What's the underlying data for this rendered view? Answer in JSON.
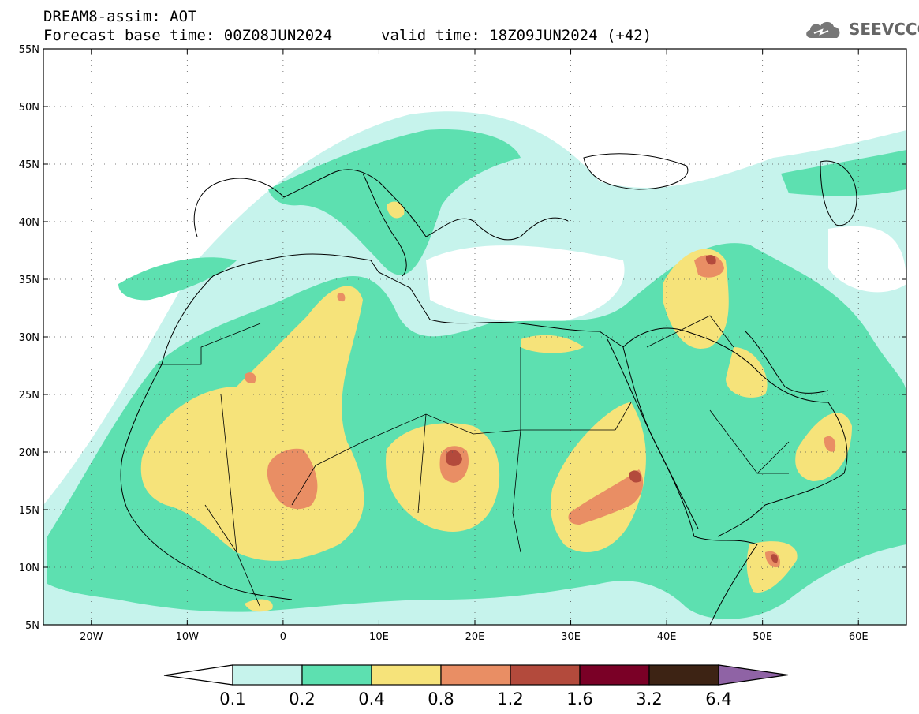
{
  "header": {
    "title": "DREAM8-assim: AOT",
    "base_time": "Forecast base time: 00Z08JUN2024",
    "valid_time": "valid time: 18Z09JUN2024 (+42)",
    "logo_text": "SEEVCCC",
    "logo_icon": "cloud-icon"
  },
  "map": {
    "lon_range": [
      -25,
      65
    ],
    "lat_range": [
      5,
      55
    ],
    "lat_ticks": [
      "55N",
      "50N",
      "45N",
      "40N",
      "35N",
      "30N",
      "25N",
      "20N",
      "15N",
      "10N",
      "5N"
    ],
    "lat_values": [
      55,
      50,
      45,
      40,
      35,
      30,
      25,
      20,
      15,
      10,
      5
    ],
    "lon_ticks": [
      "20W",
      "10W",
      "0",
      "10E",
      "20E",
      "30E",
      "40E",
      "50E",
      "60E"
    ],
    "lon_values": [
      -20,
      -10,
      0,
      10,
      20,
      30,
      40,
      50,
      60
    ]
  },
  "colorbar": {
    "levels": [
      "0.1",
      "0.2",
      "0.4",
      "0.8",
      "1.2",
      "1.6",
      "3.2",
      "6.4"
    ],
    "colors": [
      "#c6f3ec",
      "#5de0b0",
      "#f6e37a",
      "#e98e64",
      "#b34a3c",
      "#7a0026",
      "#3d2314",
      "#8f63a5"
    ],
    "under_color": "#ffffff"
  }
}
